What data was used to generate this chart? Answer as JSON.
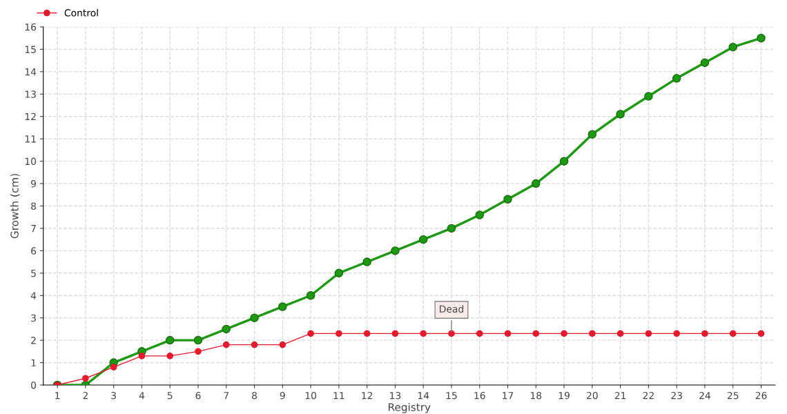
{
  "chart_data": {
    "type": "line",
    "xlabel": "Registry",
    "ylabel": "Growth (cm)",
    "categories": [
      "1",
      "2",
      "3",
      "4",
      "5",
      "6",
      "7",
      "8",
      "9",
      "10",
      "11",
      "12",
      "13",
      "14",
      "15",
      "16",
      "17",
      "18",
      "19",
      "20",
      "21",
      "22",
      "23",
      "24",
      "25",
      "26"
    ],
    "series": [
      {
        "color": "#1e9a12",
        "values": [
          0,
          0,
          1,
          1.5,
          2,
          2,
          2.5,
          3,
          3.5,
          4,
          5,
          5.5,
          6,
          6.5,
          7,
          7.6,
          8.3,
          9,
          10,
          11.2,
          12.1,
          12.9,
          13.7,
          14.4,
          15.1,
          15.5
        ]
      },
      {
        "name": "Control",
        "color": "#e8192c",
        "values": [
          0,
          0.3,
          0.8,
          1.3,
          1.3,
          1.5,
          1.8,
          1.8,
          1.8,
          2.3,
          2.3,
          2.3,
          2.3,
          2.3,
          2.3,
          2.3,
          2.3,
          2.3,
          2.3,
          2.3,
          2.3,
          2.3,
          2.3,
          2.3,
          2.3,
          2.3
        ]
      }
    ],
    "ylim": [
      0,
      16
    ],
    "yticks": [
      0,
      1,
      2,
      3,
      4,
      5,
      6,
      7,
      8,
      9,
      10,
      11,
      12,
      13,
      14,
      15,
      16
    ],
    "annotations": [
      {
        "text": "Dead",
        "x": "15",
        "y": 2.3
      }
    ],
    "grid": true,
    "legend": "top left",
    "marker": "circle",
    "line_style": "solid"
  }
}
